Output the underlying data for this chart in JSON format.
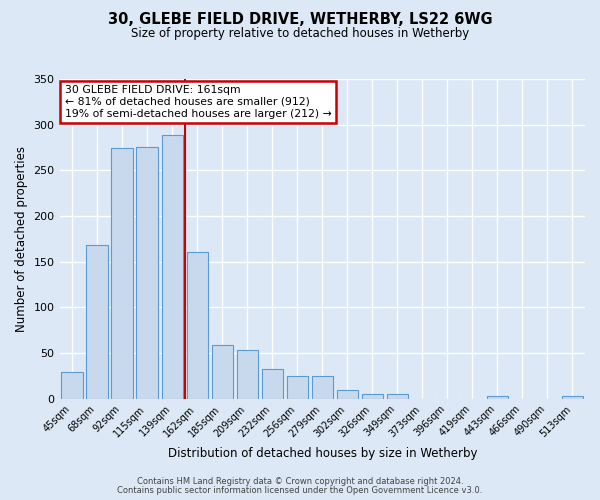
{
  "title": "30, GLEBE FIELD DRIVE, WETHERBY, LS22 6WG",
  "subtitle": "Size of property relative to detached houses in Wetherby",
  "xlabel": "Distribution of detached houses by size in Wetherby",
  "ylabel": "Number of detached properties",
  "bar_labels": [
    "45sqm",
    "68sqm",
    "92sqm",
    "115sqm",
    "139sqm",
    "162sqm",
    "185sqm",
    "209sqm",
    "232sqm",
    "256sqm",
    "279sqm",
    "302sqm",
    "326sqm",
    "349sqm",
    "373sqm",
    "396sqm",
    "419sqm",
    "443sqm",
    "466sqm",
    "490sqm",
    "513sqm"
  ],
  "bar_values": [
    29,
    168,
    275,
    276,
    289,
    161,
    59,
    53,
    33,
    25,
    25,
    10,
    5,
    5,
    0,
    0,
    0,
    3,
    0,
    0,
    3
  ],
  "bar_color": "#c9d9ed",
  "bar_edge_color": "#5b9bd5",
  "background_color": "#dce8f5",
  "ylim": [
    0,
    350
  ],
  "yticks": [
    0,
    50,
    100,
    150,
    200,
    250,
    300,
    350
  ],
  "vline_x_index": 5,
  "vline_color": "#cc0000",
  "annotation_title": "30 GLEBE FIELD DRIVE: 161sqm",
  "annotation_line1": "← 81% of detached houses are smaller (912)",
  "annotation_line2": "19% of semi-detached houses are larger (212) →",
  "annotation_box_color": "#cc0000",
  "footer_line1": "Contains HM Land Registry data © Crown copyright and database right 2024.",
  "footer_line2": "Contains public sector information licensed under the Open Government Licence v3.0."
}
